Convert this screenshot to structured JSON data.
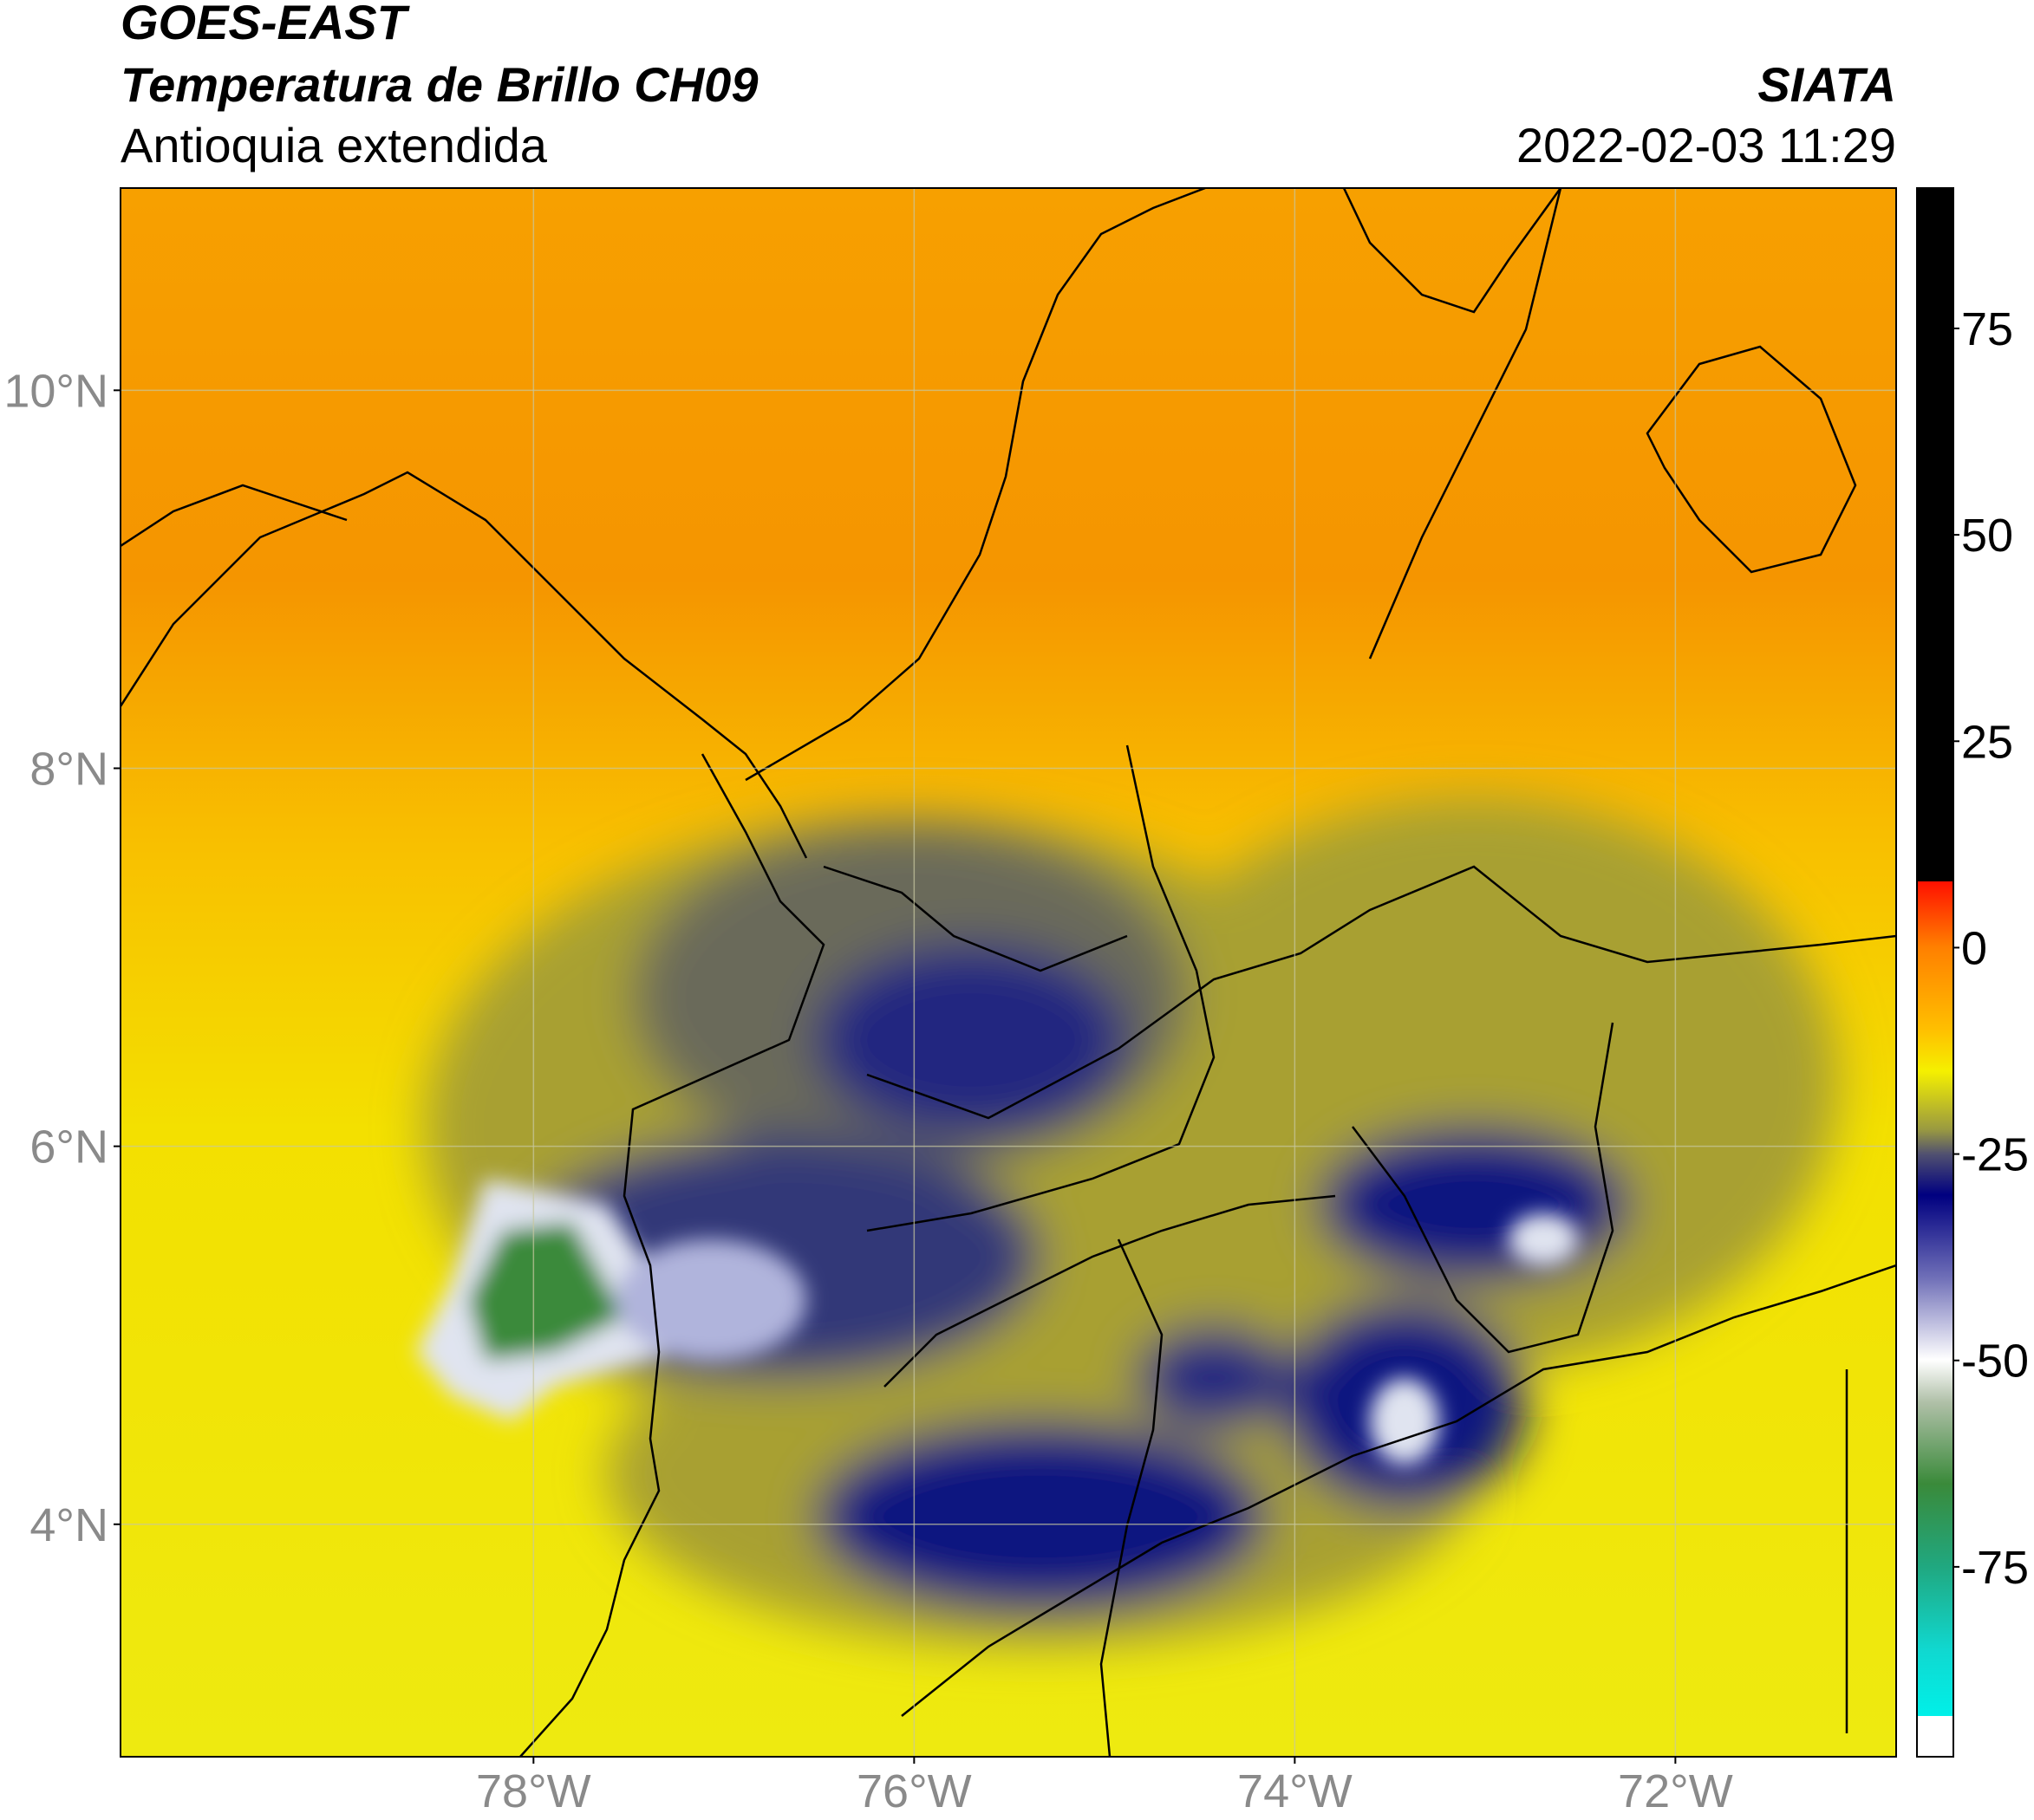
{
  "header": {
    "title": "GOES-EAST",
    "subtitle": "Temperatura de Brillo CH09",
    "region": "Antioquia extendida",
    "source": "SIATA",
    "datetime": "2022-02-03 11:29"
  },
  "map": {
    "lonlim": [
      -80.17,
      -70.84
    ],
    "latlim": [
      2.77,
      11.07
    ],
    "lat_ticks": [
      {
        "value": 10,
        "label": "10°N"
      },
      {
        "value": 8,
        "label": "8°N"
      },
      {
        "value": 6,
        "label": "6°N"
      },
      {
        "value": 4,
        "label": "4°N"
      }
    ],
    "lon_ticks": [
      {
        "value": -78,
        "label": "78°W"
      },
      {
        "value": -76,
        "label": "76°W"
      },
      {
        "value": -74,
        "label": "74°W"
      },
      {
        "value": -72,
        "label": "72°W"
      }
    ]
  },
  "colorbar": {
    "lim": [
      -98,
      92
    ],
    "ticks": [
      75,
      50,
      25,
      0,
      -25,
      -50,
      -75
    ]
  }
}
